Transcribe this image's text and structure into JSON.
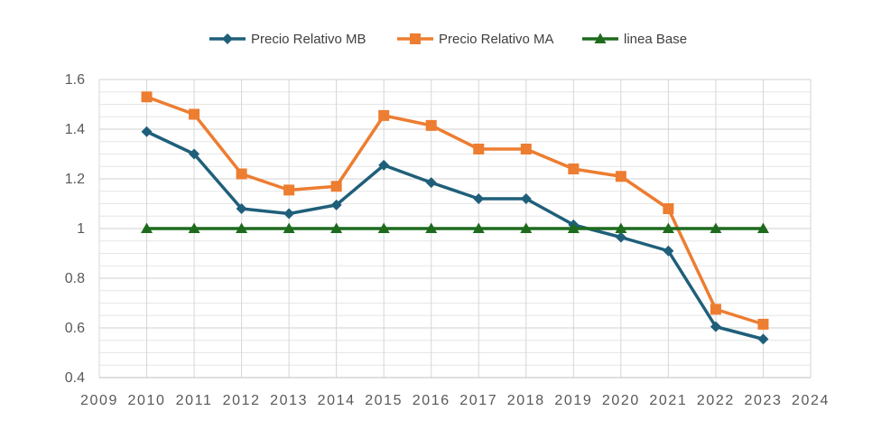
{
  "chart_data": {
    "type": "line",
    "x": [
      2010,
      2011,
      2012,
      2013,
      2014,
      2015,
      2016,
      2017,
      2018,
      2019,
      2020,
      2021,
      2022,
      2023
    ],
    "xlim": [
      2009,
      2024
    ],
    "xticks": [
      "2009",
      "2010",
      "2011",
      "2012",
      "2013",
      "2014",
      "2015",
      "2016",
      "2017",
      "2018",
      "2019",
      "2020",
      "2021",
      "2022",
      "2023",
      "2024"
    ],
    "ylim": [
      0.4,
      1.6
    ],
    "yticks": [
      "0.4",
      "0.6",
      "0.8",
      "1",
      "1.2",
      "1.4",
      "1.6"
    ],
    "grid": true,
    "legend_position": "top",
    "series": [
      {
        "name": "Precio Relativo MB",
        "color": "#1f5f7a",
        "marker": "diamond",
        "values": [
          1.39,
          1.3,
          1.08,
          1.06,
          1.095,
          1.255,
          1.185,
          1.12,
          1.12,
          1.015,
          0.965,
          0.91,
          0.605,
          0.555
        ]
      },
      {
        "name": "Precio Relativo MA",
        "color": "#ed7d31",
        "marker": "square",
        "values": [
          1.53,
          1.46,
          1.22,
          1.155,
          1.17,
          1.455,
          1.415,
          1.32,
          1.32,
          1.24,
          1.21,
          1.08,
          0.675,
          0.615
        ]
      },
      {
        "name": "linea Base",
        "color": "#1e6b1e",
        "marker": "triangle",
        "values": [
          1,
          1,
          1,
          1,
          1,
          1,
          1,
          1,
          1,
          1,
          1,
          1,
          1,
          1
        ]
      }
    ]
  }
}
